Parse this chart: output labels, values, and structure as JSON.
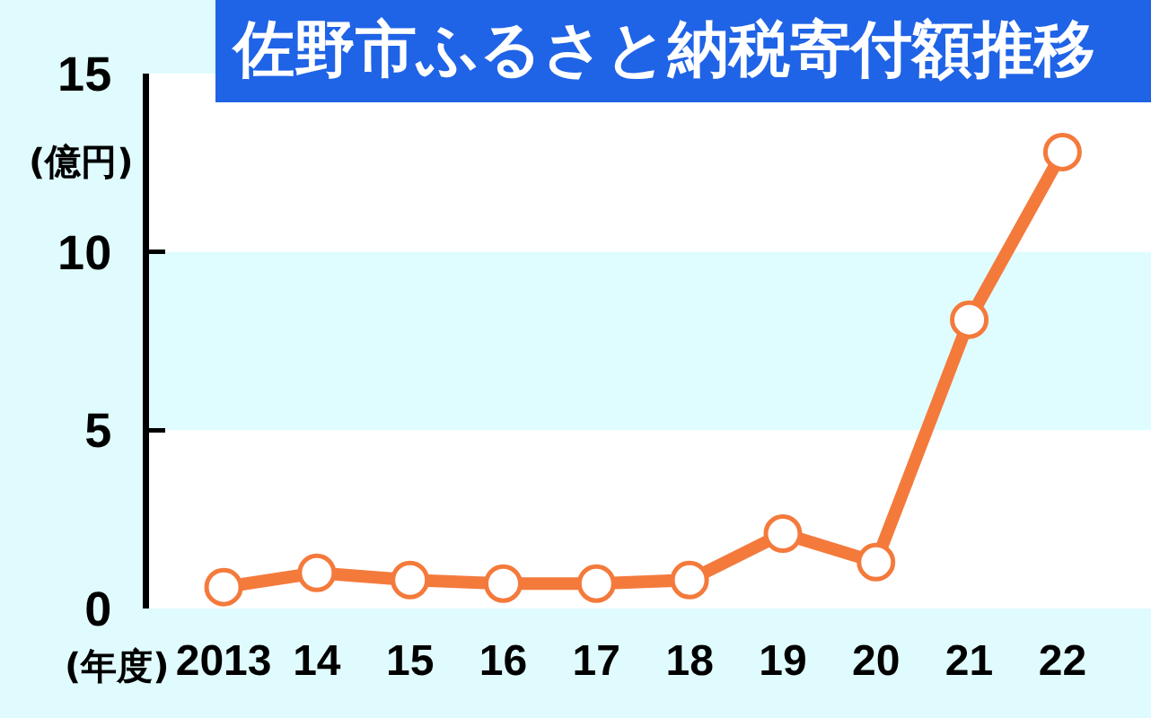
{
  "chart_data": {
    "type": "line",
    "title": "佐野市ふるさと納税寄付額推移",
    "xlabel": "(年度)",
    "ylabel": "(億円)",
    "categories": [
      "2013",
      "14",
      "15",
      "16",
      "17",
      "18",
      "19",
      "20",
      "21",
      "22"
    ],
    "series": [
      {
        "color": "#f47a3c",
        "values": [
          0.6,
          1.0,
          0.8,
          0.7,
          0.7,
          0.8,
          2.1,
          1.3,
          8.1,
          12.8
        ]
      }
    ],
    "ylim": [
      0,
      15
    ],
    "yticks": [
      0,
      5,
      10,
      15
    ],
    "bands": [
      {
        "axis": "y",
        "from": 5,
        "to": 10,
        "color": "#dffcff"
      }
    ],
    "grid": false,
    "marker": "circle",
    "line_style": "solid"
  }
}
